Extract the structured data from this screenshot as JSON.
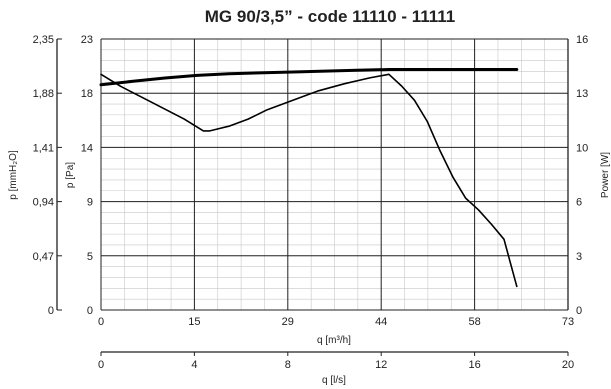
{
  "chart_data": {
    "type": "line",
    "title": "MG 90/3,5” - code 11110 - 11111",
    "x_axis": {
      "label": "q [m³/h]",
      "range": [
        0,
        73
      ],
      "ticks": [
        "0",
        "15",
        "29",
        "44",
        "58",
        "73"
      ]
    },
    "x_axis_secondary": {
      "label": "q [l/s]",
      "range": [
        0,
        20
      ],
      "ticks": [
        "0",
        "4",
        "8",
        "12",
        "16",
        "20"
      ]
    },
    "y_axis": {
      "label": "p [Pa]",
      "range": [
        0,
        23
      ],
      "ticks": [
        "0",
        "5",
        "9",
        "14",
        "18",
        "23"
      ]
    },
    "y_axis_outer": {
      "label": "p [mmH₂O]",
      "range": [
        0,
        2.35
      ],
      "ticks": [
        "0",
        "0,47",
        "0,94",
        "1,41",
        "1,88",
        "2,35"
      ]
    },
    "y_axis_right": {
      "label": "Power [W]",
      "range": [
        0,
        16
      ],
      "ticks": [
        "0",
        "3",
        "6",
        "10",
        "13",
        "16"
      ]
    },
    "grid": true,
    "series": [
      {
        "axis": "left",
        "x": [
          0,
          3,
          8,
          13,
          16,
          17,
          20,
          23,
          26,
          30,
          34,
          38,
          42,
          45,
          47,
          49,
          51,
          53,
          55,
          57,
          59,
          61,
          63,
          64,
          65
        ],
        "y": [
          20.0,
          19.0,
          17.6,
          16.2,
          15.2,
          15.2,
          15.6,
          16.2,
          17.0,
          17.8,
          18.6,
          19.2,
          19.7,
          20.0,
          19.0,
          17.8,
          16.0,
          13.5,
          11.3,
          9.5,
          8.5,
          7.3,
          6.0,
          4.0,
          2.0
        ],
        "color": "#000000",
        "stroke": "thin"
      },
      {
        "axis": "right",
        "x": [
          0,
          5,
          10,
          15,
          20,
          30,
          40,
          45,
          50,
          60,
          65
        ],
        "y": [
          13.3,
          13.5,
          13.7,
          13.85,
          13.95,
          14.05,
          14.15,
          14.2,
          14.2,
          14.2,
          14.2
        ],
        "color": "#000000",
        "stroke": "thick"
      }
    ]
  }
}
